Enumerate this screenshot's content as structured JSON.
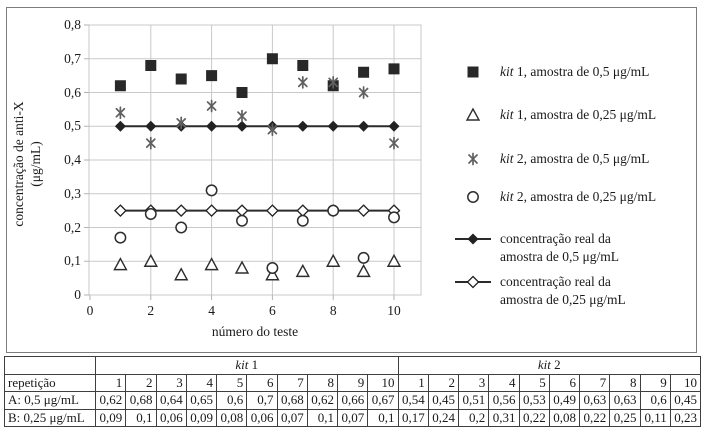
{
  "colors": {
    "grid": "#c9c9c9",
    "tick": "#b2b2b2",
    "frame": "#c9c9c9",
    "dark_marker": "#282828",
    "asterisk_marker": "#606060",
    "line_series": "#2b2b2b",
    "table_border": "#3f3f3f",
    "figure_border": "#7d7d7d",
    "text": "#1a1a1a"
  },
  "chart_data": {
    "type": "scatter",
    "title": "",
    "xlabel": "número do teste",
    "ylabel": "concentração de anti-X (μg/mL)",
    "ylabel_lines": [
      "concentração de anti-X",
      "(μg/mL)"
    ],
    "xlim": [
      0,
      10.9
    ],
    "ylim": [
      0,
      0.8
    ],
    "grid": true,
    "legend_position": "right",
    "x_tick_values": [
      0,
      2,
      4,
      6,
      8,
      10
    ],
    "x_tick_labels": [
      "0",
      "2",
      "4",
      "6",
      "8",
      "10"
    ],
    "y_tick_values": [
      0,
      0.1,
      0.2,
      0.3,
      0.4,
      0.5,
      0.6,
      0.7,
      0.8
    ],
    "y_tick_labels": [
      "0",
      "0,1",
      "0,2",
      "0,3",
      "0,4",
      "0,5",
      "0,6",
      "0,7",
      "0,8"
    ],
    "x": [
      1,
      2,
      3,
      4,
      5,
      6,
      7,
      8,
      9,
      10
    ],
    "series": [
      {
        "name": "kit 1, amostra de 0,5 μg/mL",
        "marker": "square-filled",
        "legend_italic": "kit",
        "legend_rest": " 1, amostra de 0,5 μg/mL",
        "values": [
          0.62,
          0.68,
          0.64,
          0.65,
          0.6,
          0.7,
          0.68,
          0.62,
          0.66,
          0.67
        ]
      },
      {
        "name": "kit 1, amostra de 0,25 μg/mL",
        "marker": "triangle-open",
        "legend_italic": "kit",
        "legend_rest": " 1, amostra de 0,25 μg/mL",
        "values": [
          0.09,
          0.1,
          0.06,
          0.09,
          0.08,
          0.06,
          0.07,
          0.1,
          0.07,
          0.1
        ]
      },
      {
        "name": "kit 2, amostra de 0,5 μg/mL",
        "marker": "asterisk",
        "legend_italic": "kit",
        "legend_rest": " 2, amostra de 0,5 μg/mL",
        "values": [
          0.54,
          0.45,
          0.51,
          0.56,
          0.53,
          0.49,
          0.63,
          0.63,
          0.6,
          0.45
        ]
      },
      {
        "name": "kit 2, amostra de 0,25 μg/mL",
        "marker": "circle-open",
        "legend_italic": "kit",
        "legend_rest": " 2, amostra de 0,25 μg/mL",
        "values": [
          0.17,
          0.24,
          0.2,
          0.31,
          0.22,
          0.08,
          0.22,
          0.25,
          0.11,
          0.23
        ]
      },
      {
        "name": "concentração real da amostra de 0,5 μg/mL",
        "marker": "line-diamond-filled",
        "legend_italic": "",
        "legend_rest": "concentração real da\namostra de 0,5 μg/mL",
        "values": [
          0.5,
          0.5,
          0.5,
          0.5,
          0.5,
          0.5,
          0.5,
          0.5,
          0.5,
          0.5
        ]
      },
      {
        "name": "concentração real da amostra de 0,25 μg/mL",
        "marker": "line-diamond-open",
        "legend_italic": "",
        "legend_rest": "concentração real da\namostra de 0,25 μg/mL",
        "values": [
          0.25,
          0.25,
          0.25,
          0.25,
          0.25,
          0.25,
          0.25,
          0.25,
          0.25,
          0.25
        ]
      }
    ]
  },
  "table": {
    "corner_label": "",
    "row_header": "repetição",
    "groups": [
      {
        "italic": "kit",
        "rest": " 1"
      },
      {
        "italic": "kit",
        "rest": " 2"
      }
    ],
    "repetitions": [
      "1",
      "2",
      "3",
      "4",
      "5",
      "6",
      "7",
      "8",
      "9",
      "10",
      "1",
      "2",
      "3",
      "4",
      "5",
      "6",
      "7",
      "8",
      "9",
      "10"
    ],
    "rows": [
      {
        "label": "A: 0,5 μg/mL",
        "values": [
          "0,62",
          "0,68",
          "0,64",
          "0,65",
          "0,6",
          "0,7",
          "0,68",
          "0,62",
          "0,66",
          "0,67",
          "0,54",
          "0,45",
          "0,51",
          "0,56",
          "0,53",
          "0,49",
          "0,63",
          "0,63",
          "0,6",
          "0,45"
        ]
      },
      {
        "label": "B: 0,25 μg/mL",
        "values": [
          "0,09",
          "0,1",
          "0,06",
          "0,09",
          "0,08",
          "0,06",
          "0,07",
          "0,1",
          "0,07",
          "0,1",
          "0,17",
          "0,24",
          "0,2",
          "0,31",
          "0,22",
          "0,08",
          "0,22",
          "0,25",
          "0,11",
          "0,23"
        ]
      }
    ]
  }
}
